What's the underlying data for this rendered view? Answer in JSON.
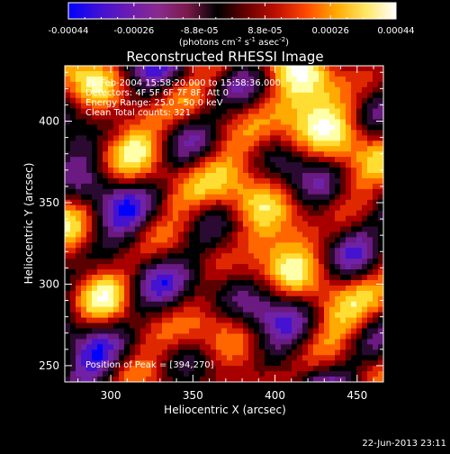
{
  "colorbar": {
    "ticks": [
      "-0.00044",
      "-0.00026",
      "-8.8e-05",
      "8.8e-05",
      "0.00026",
      "0.00044"
    ],
    "unit_label": "(photons cm",
    "unit_exp1": "-2",
    "unit_mid": " s",
    "unit_exp2": "-1",
    "unit_tail": " asec",
    "unit_exp3": "-2",
    "unit_close": ")",
    "colors": [
      "#0000ff",
      "#3e0fd6",
      "#6a1cb2",
      "#8a2a8f",
      "#7a1a4a",
      "#000000",
      "#6a0000",
      "#c01000",
      "#ff4a00",
      "#ffaa00",
      "#ffe866",
      "#ffffff"
    ]
  },
  "plot": {
    "title": "Reconstructed RHESSI Image",
    "annotations": [
      "26-Feb-2004 15:58:20.000 to 15:58:36.000",
      "Detectors: 4F 5F 6F 7F 8F, Att 0",
      "Energy Range: 25.0 - 50.0 keV",
      "Clean      Total counts: 321"
    ],
    "peak_label": "Position of Peak = [394,270]",
    "xlabel": "Heliocentric X (arcsec)",
    "ylabel": "Heliocentric Y (arcsec)",
    "xticks": [
      "300",
      "350",
      "400",
      "450"
    ],
    "yticks": [
      "250",
      "300",
      "350",
      "400"
    ],
    "xlim": [
      272,
      466
    ],
    "ylim": [
      240,
      434
    ],
    "palette": [
      "#0000ff",
      "#4412d0",
      "#6f22a8",
      "#6a1a80",
      "#2a0a30",
      "#000000",
      "#5a0000",
      "#a80000",
      "#e02800",
      "#ff6600",
      "#ffaa00",
      "#ffdd33",
      "#ffffaa",
      "#ffffff"
    ]
  },
  "footer": {
    "timestamp": "22-Jun-2013 23:11"
  }
}
